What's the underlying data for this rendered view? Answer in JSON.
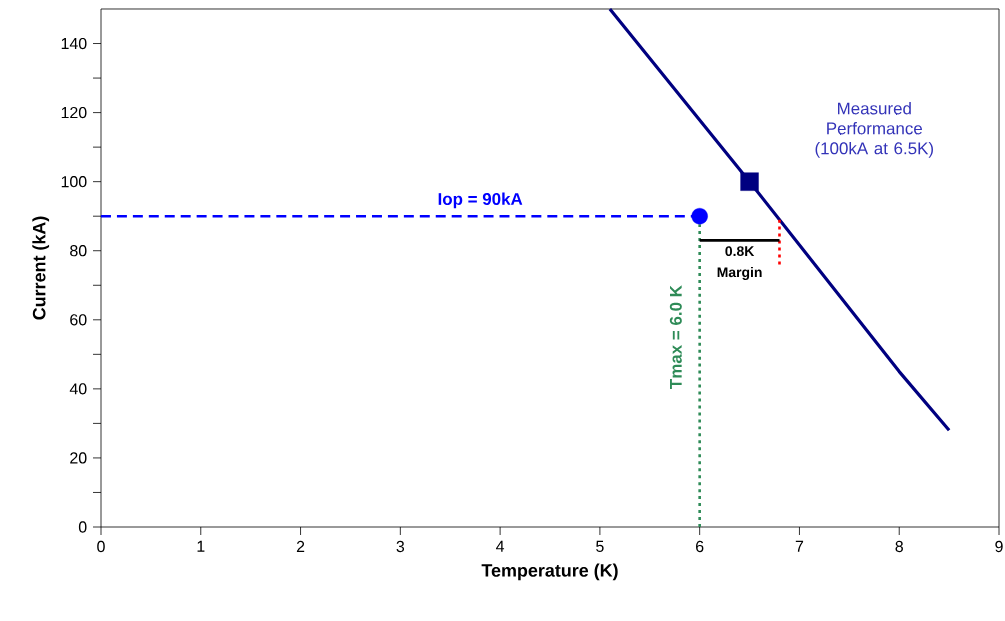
{
  "chart_data": {
    "type": "line",
    "xlabel": "Temperature (K)",
    "ylabel": "Current (kA)",
    "xlim": [
      0,
      9
    ],
    "ylim": [
      0,
      150
    ],
    "xticks": [
      0,
      1,
      2,
      3,
      4,
      5,
      6,
      7,
      8,
      9
    ],
    "yticks": [
      0,
      {
        "value": 10,
        "label": null
      },
      20,
      {
        "value": 30,
        "label": null
      },
      40,
      {
        "value": 50,
        "label": null
      },
      60,
      {
        "value": 70,
        "label": null
      },
      80,
      {
        "value": 90,
        "label": null
      },
      100,
      {
        "value": 110,
        "label": null
      },
      120,
      {
        "value": 130,
        "label": null
      },
      140
    ],
    "series": [
      {
        "color": "#000080",
        "x": [
          5.1,
          6.5,
          8,
          8.5
        ],
        "values": [
          150,
          100,
          45,
          28
        ],
        "marker": "none",
        "line_style": "solid"
      },
      {
        "color": "#0000ff",
        "x": [
          0,
          6
        ],
        "values": [
          90,
          90
        ],
        "marker": "none",
        "line_style": "dashed"
      },
      {
        "color": "#2e8b57",
        "x": [
          6,
          6
        ],
        "values": [
          0,
          90
        ],
        "marker": "none",
        "line_style": "dotted"
      },
      {
        "color": "#ff0000",
        "x": [
          6.8,
          6.8
        ],
        "values": [
          89,
          75
        ],
        "marker": "none",
        "line_style": "dotted"
      },
      {
        "color": "#000000",
        "x": [
          6,
          6.8
        ],
        "values": [
          83,
          83
        ],
        "marker": "none",
        "line_style": "solid"
      },
      {
        "type": "scatter",
        "color": "#0000ff",
        "x": [
          6
        ],
        "values": [
          90
        ],
        "marker": "circle"
      },
      {
        "type": "scatter",
        "color": "#000080",
        "x": [
          6.5
        ],
        "values": [
          100
        ],
        "marker": "square"
      }
    ],
    "annotations": [
      {
        "text": "Iop = 90kA",
        "x": 3.8,
        "y": 90
      },
      "Measured Performance (100kA at 6.5K)",
      {
        "text": "0.8K",
        "x": 6.4,
        "y": 83
      },
      "Margin",
      {
        "text": "Tmax = 6.0 K",
        "x": 6,
        "y": 55
      }
    ]
  }
}
